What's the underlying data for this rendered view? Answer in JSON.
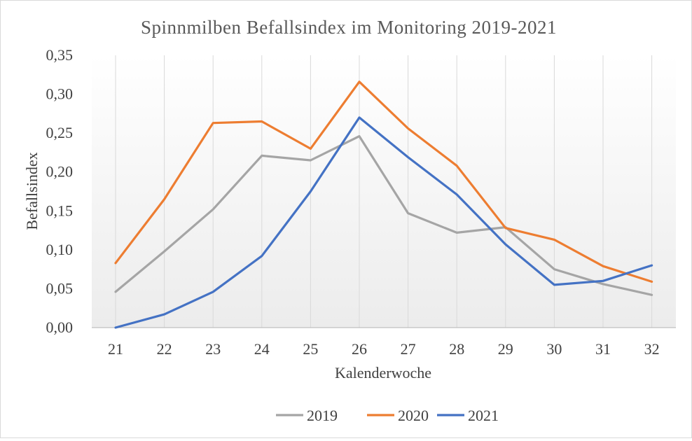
{
  "chart_data": {
    "type": "line",
    "title": "Spinnmilben Befallsindex im Monitoring 2019-2021",
    "xlabel": "Kalenderwoche",
    "ylabel": "Befallsindex",
    "categories": [
      "21",
      "22",
      "23",
      "24",
      "25",
      "26",
      "27",
      "28",
      "29",
      "30",
      "31",
      "32"
    ],
    "ylim": [
      0,
      0.35
    ],
    "yticks": [
      "0,00",
      "0,05",
      "0,10",
      "0,15",
      "0,20",
      "0,25",
      "0,30",
      "0,35"
    ],
    "ytick_values": [
      0,
      0.05,
      0.1,
      0.15,
      0.2,
      0.25,
      0.3,
      0.35
    ],
    "grid": "vertical",
    "legend_position": "bottom",
    "series": [
      {
        "name": "2019",
        "color": "#a5a5a5",
        "values": [
          0.046,
          0.098,
          0.152,
          0.221,
          0.215,
          0.246,
          0.147,
          0.122,
          0.129,
          0.075,
          0.056,
          0.042
        ]
      },
      {
        "name": "2020",
        "color": "#ed7d31",
        "values": [
          0.083,
          0.165,
          0.263,
          0.265,
          0.23,
          0.316,
          0.256,
          0.208,
          0.128,
          0.113,
          0.079,
          0.059
        ]
      },
      {
        "name": "2021",
        "color": "#4472c4",
        "values": [
          0.0,
          0.017,
          0.046,
          0.092,
          0.175,
          0.27,
          0.219,
          0.171,
          0.107,
          0.055,
          0.06,
          0.08
        ]
      }
    ]
  }
}
